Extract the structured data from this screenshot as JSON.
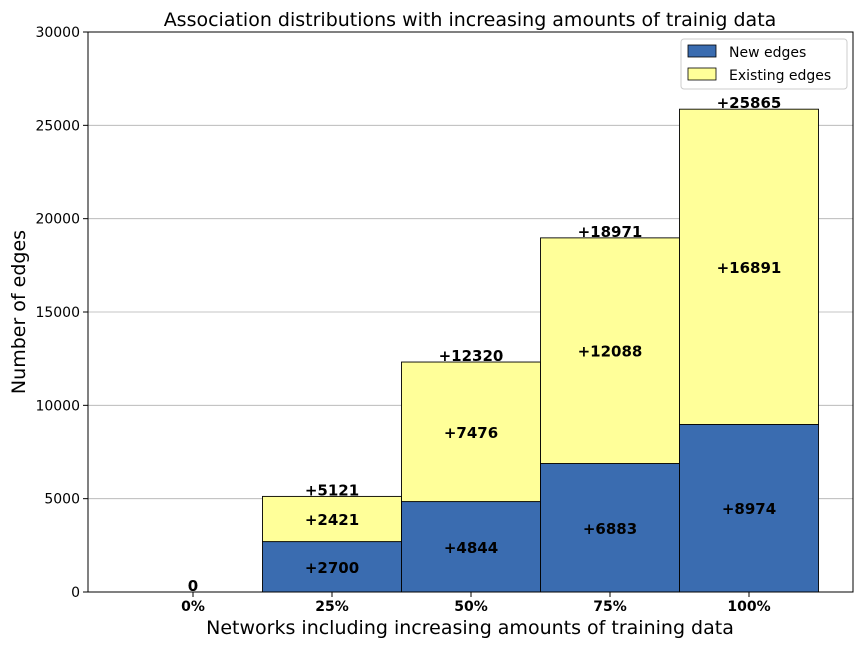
{
  "chart_data": {
    "type": "bar",
    "stacked": true,
    "title": "Association distributions with increasing amounts of trainig data",
    "xlabel": "Networks including increasing amounts of training data",
    "ylabel": "Number of edges",
    "categories": [
      "0%",
      "25%",
      "50%",
      "75%",
      "100%"
    ],
    "ylim": [
      0,
      30000
    ],
    "yticks": [
      "0",
      "5000",
      "10000",
      "15000",
      "20000",
      "25000",
      "30000"
    ],
    "grid": "y",
    "legend_position": "top-right",
    "series": [
      {
        "name": "New edges",
        "color": "#3a6cb0",
        "values": [
          0,
          2700,
          4844,
          6883,
          8974
        ],
        "labels": [
          "",
          "+2700",
          "+4844",
          "+6883",
          "+8974"
        ]
      },
      {
        "name": "Existing edges",
        "color": "#ffff99",
        "values": [
          0,
          2421,
          7476,
          12088,
          16891
        ],
        "labels": [
          "",
          "+2421",
          "+7476",
          "+12088",
          "+16891"
        ]
      }
    ],
    "totals": [
      0,
      5121,
      12320,
      18971,
      25865
    ],
    "total_labels": [
      "0",
      "+5121",
      "+12320",
      "+18971",
      "+25865"
    ]
  }
}
